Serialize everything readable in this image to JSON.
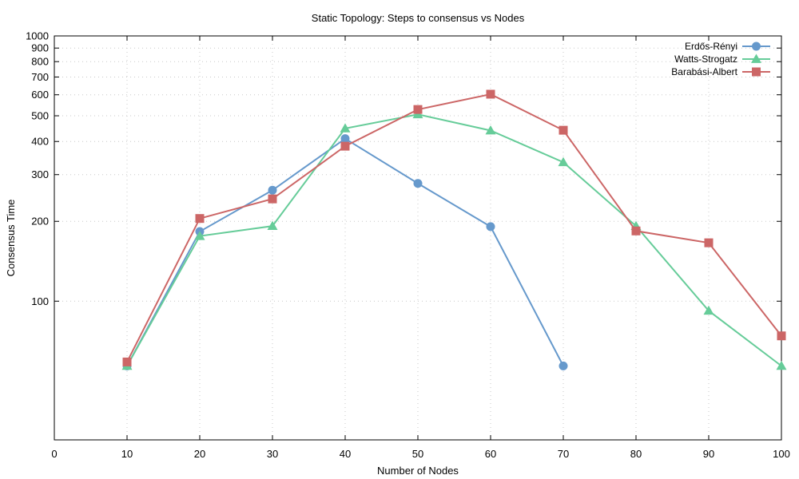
{
  "chart_data": {
    "type": "line",
    "title": "Static Topology: Steps to consensus vs Nodes",
    "xlabel": "Number of Nodes",
    "ylabel": "Consensus Time",
    "xlim": [
      0,
      100
    ],
    "ylim": [
      30,
      1000
    ],
    "yscale": "log",
    "grid": true,
    "legend_position": "top-right",
    "xticks": [
      0,
      10,
      20,
      30,
      40,
      50,
      60,
      70,
      80,
      90,
      100
    ],
    "yticks": [
      100,
      200,
      300,
      400,
      500,
      600,
      700,
      800,
      900,
      1000
    ],
    "series": [
      {
        "name": "Erdős-Rényi",
        "color": "#6699cc",
        "marker": "circle",
        "x": [
          10,
          20,
          30,
          40,
          50,
          60,
          70
        ],
        "y": [
          57,
          183,
          262,
          410,
          278,
          191,
          57
        ]
      },
      {
        "name": "Watts-Strogatz",
        "color": "#66cc99",
        "marker": "triangle",
        "x": [
          10,
          20,
          30,
          40,
          50,
          60,
          70,
          80,
          90,
          100
        ],
        "y": [
          57,
          176,
          192,
          448,
          506,
          440,
          334,
          192,
          92,
          57
        ]
      },
      {
        "name": "Barabási-Albert",
        "color": "#cc6666",
        "marker": "square",
        "x": [
          10,
          20,
          30,
          40,
          50,
          60,
          70,
          80,
          90,
          100
        ],
        "y": [
          59,
          205,
          243,
          384,
          528,
          603,
          441,
          184,
          166,
          74
        ]
      }
    ]
  }
}
